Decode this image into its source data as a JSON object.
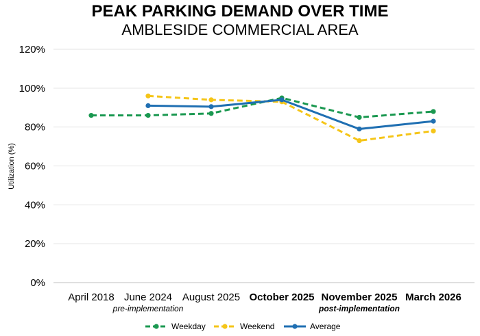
{
  "chart_data": {
    "type": "line",
    "title": "PEAK PARKING DEMAND OVER TIME",
    "subtitle": "AMBLESIDE COMMERCIAL AREA",
    "ylabel": "Utilization (%)",
    "xlabel": "",
    "ylim": [
      0,
      120
    ],
    "yticks": [
      "0%",
      "20%",
      "40%",
      "60%",
      "80%",
      "100%",
      "120%"
    ],
    "grid": true,
    "legend_position": "bottom",
    "categories": [
      "April 2018",
      "June 2024",
      "August 2025",
      "October 2025",
      "November 2025",
      "March 2026"
    ],
    "bold_categories": [
      false,
      false,
      false,
      true,
      true,
      true
    ],
    "category_notes": [
      {
        "category": "June 2024",
        "text": "pre-implementation",
        "bold": false
      },
      {
        "category": "November 2025",
        "text": "post-implementation",
        "bold": true
      }
    ],
    "series": [
      {
        "name": "Weekday",
        "color": "#1a9850",
        "dashed": true,
        "values": [
          86,
          86,
          87,
          95,
          85,
          88
        ]
      },
      {
        "name": "Weekend",
        "color": "#f5c518",
        "dashed": true,
        "values": [
          null,
          96,
          94,
          93,
          73,
          78
        ]
      },
      {
        "name": "Average",
        "color": "#1f6fb2",
        "dashed": false,
        "values": [
          null,
          91,
          90.5,
          94,
          79,
          83
        ]
      }
    ]
  }
}
